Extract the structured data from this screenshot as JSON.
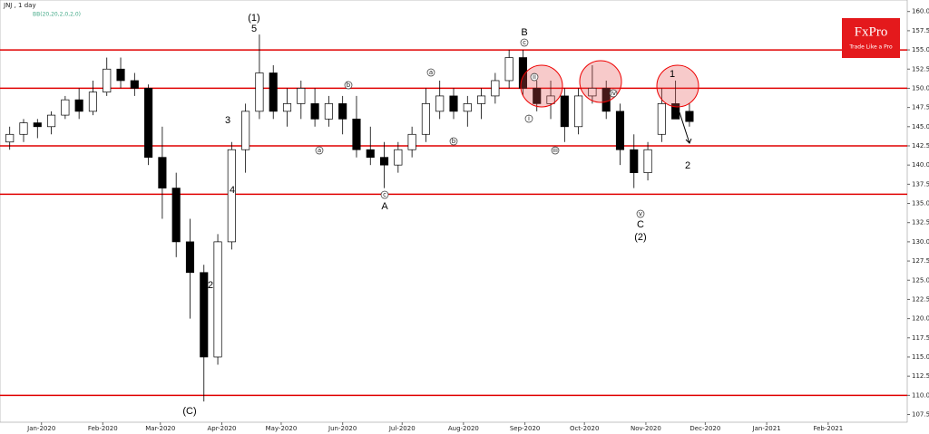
{
  "chart_data": {
    "type": "candlestick",
    "title": "JNJ , 1 day",
    "subtitle": "BB(20,20,2,0,2,0)",
    "logo": "FxPro",
    "logo_tagline": "Trade Like a Pro",
    "categories": [
      null,
      null,
      null,
      null,
      null,
      null,
      null,
      null,
      null,
      null,
      null,
      null,
      null,
      null,
      null,
      null,
      null,
      null,
      null,
      null,
      null,
      null,
      null,
      null,
      null,
      null,
      null,
      null,
      null,
      null,
      null,
      null,
      null,
      null,
      null,
      null,
      null,
      null,
      null,
      null,
      null,
      null,
      null,
      null,
      null,
      null,
      null,
      null,
      null,
      null
    ],
    "open": [
      143,
      144,
      145.5,
      145,
      146.5,
      148.5,
      147,
      149.5,
      152.5,
      151,
      150,
      141,
      137,
      130,
      126,
      115,
      130,
      142,
      147,
      152,
      147,
      148,
      148,
      146,
      148,
      146,
      142,
      141,
      140,
      142,
      144,
      147,
      149,
      147,
      148,
      149,
      151,
      154,
      150,
      148,
      149,
      145,
      149,
      150,
      147,
      142,
      139,
      144,
      148,
      147
    ],
    "high": [
      145,
      146,
      146,
      147,
      149,
      150,
      151,
      154,
      154,
      152,
      150.5,
      145,
      139,
      133,
      127,
      131,
      143,
      148,
      157,
      153,
      150,
      151,
      150,
      149,
      149,
      149,
      145,
      143,
      143,
      145,
      150,
      151,
      150,
      149,
      150,
      152,
      155,
      155,
      151,
      151,
      150,
      150,
      153,
      151,
      148,
      144,
      143,
      150,
      151,
      148
    ],
    "low": [
      142,
      143,
      143.5,
      144,
      146,
      146,
      146.5,
      149,
      150,
      149,
      140,
      133,
      128,
      120,
      109.2,
      114,
      129,
      139,
      146,
      146,
      145,
      146,
      145,
      145,
      144,
      141,
      140,
      137,
      139,
      141,
      143,
      146,
      146,
      145,
      146,
      148,
      150,
      149,
      147,
      146,
      143,
      144,
      148,
      146,
      140,
      137,
      138,
      143,
      146,
      145
    ],
    "close": [
      144,
      145.5,
      145,
      146.5,
      148.5,
      147,
      149.5,
      152.5,
      151,
      150,
      141,
      137,
      130,
      126,
      115,
      130,
      142,
      147,
      152,
      147,
      148,
      150,
      146,
      148,
      146,
      142,
      141,
      140,
      142,
      144,
      148,
      149,
      147,
      148,
      149,
      151,
      154,
      150,
      148,
      149,
      145,
      149,
      150,
      147,
      142,
      139,
      142,
      148,
      146,
      145.67
    ],
    "up_color": "#ffffff",
    "down_color": "#000000",
    "level_color": "#e00000",
    "levels": [
      155,
      150,
      142.5,
      136.2,
      110
    ],
    "xlim": [
      -0.7,
      64.7
    ],
    "xticks": [
      {
        "value": 2.29,
        "label": "Jan-2020"
      },
      {
        "value": 6.71,
        "label": "Feb-2020"
      },
      {
        "value": 10.86,
        "label": "Mar-2020"
      },
      {
        "value": 15.29,
        "label": "Apr-2020"
      },
      {
        "value": 19.57,
        "label": "May-2020"
      },
      {
        "value": 24,
        "label": "Jun-2020"
      },
      {
        "value": 28.29,
        "label": "Jul-2020"
      },
      {
        "value": 32.71,
        "label": "Aug-2020"
      },
      {
        "value": 37.14,
        "label": "Sep-2020"
      },
      {
        "value": 41.43,
        "label": "Oct-2020"
      },
      {
        "value": 45.86,
        "label": "Nov-2020"
      },
      {
        "value": 50.14,
        "label": "Dec-2020"
      },
      {
        "value": 54.57,
        "label": "Jan-2021"
      },
      {
        "value": 59,
        "label": "Feb-2021"
      }
    ],
    "ylim": [
      106.5,
      161.5
    ],
    "yticks": [
      {
        "value": 107.5,
        "label": "107.50"
      },
      {
        "value": 110,
        "label": "110.00"
      },
      {
        "value": 112.5,
        "label": "112.50"
      },
      {
        "value": 115,
        "label": "115.00"
      },
      {
        "value": 117.5,
        "label": "117.50"
      },
      {
        "value": 120,
        "label": "120.00"
      },
      {
        "value": 122.5,
        "label": "122.50"
      },
      {
        "value": 125,
        "label": "125.00"
      },
      {
        "value": 127.5,
        "label": "127.50"
      },
      {
        "value": 130,
        "label": "130.00"
      },
      {
        "value": 132.5,
        "label": "132.50"
      },
      {
        "value": 135,
        "label": "135.00"
      },
      {
        "value": 137.5,
        "label": "137.50"
      },
      {
        "value": 140,
        "label": "140.00"
      },
      {
        "value": 142.5,
        "label": "142.50"
      },
      {
        "value": 145,
        "label": "145.00"
      },
      {
        "value": 147.5,
        "label": "147.50"
      },
      {
        "value": 150,
        "label": "150.00"
      },
      {
        "value": 152.5,
        "label": "152.50"
      },
      {
        "value": 155,
        "label": "155.00"
      },
      {
        "value": 157.5,
        "label": "157.50"
      },
      {
        "value": 160,
        "label": "160.00"
      }
    ],
    "annotations": [
      "(1)",
      "5",
      "B",
      "3",
      "4",
      "2",
      "A",
      "C",
      "(2)",
      "(C)",
      "1",
      "2"
    ],
    "wave_marks": [
      "i",
      "ii",
      "iii",
      "iv",
      "v",
      "a",
      "b",
      "c",
      "a",
      "b",
      "c"
    ]
  }
}
